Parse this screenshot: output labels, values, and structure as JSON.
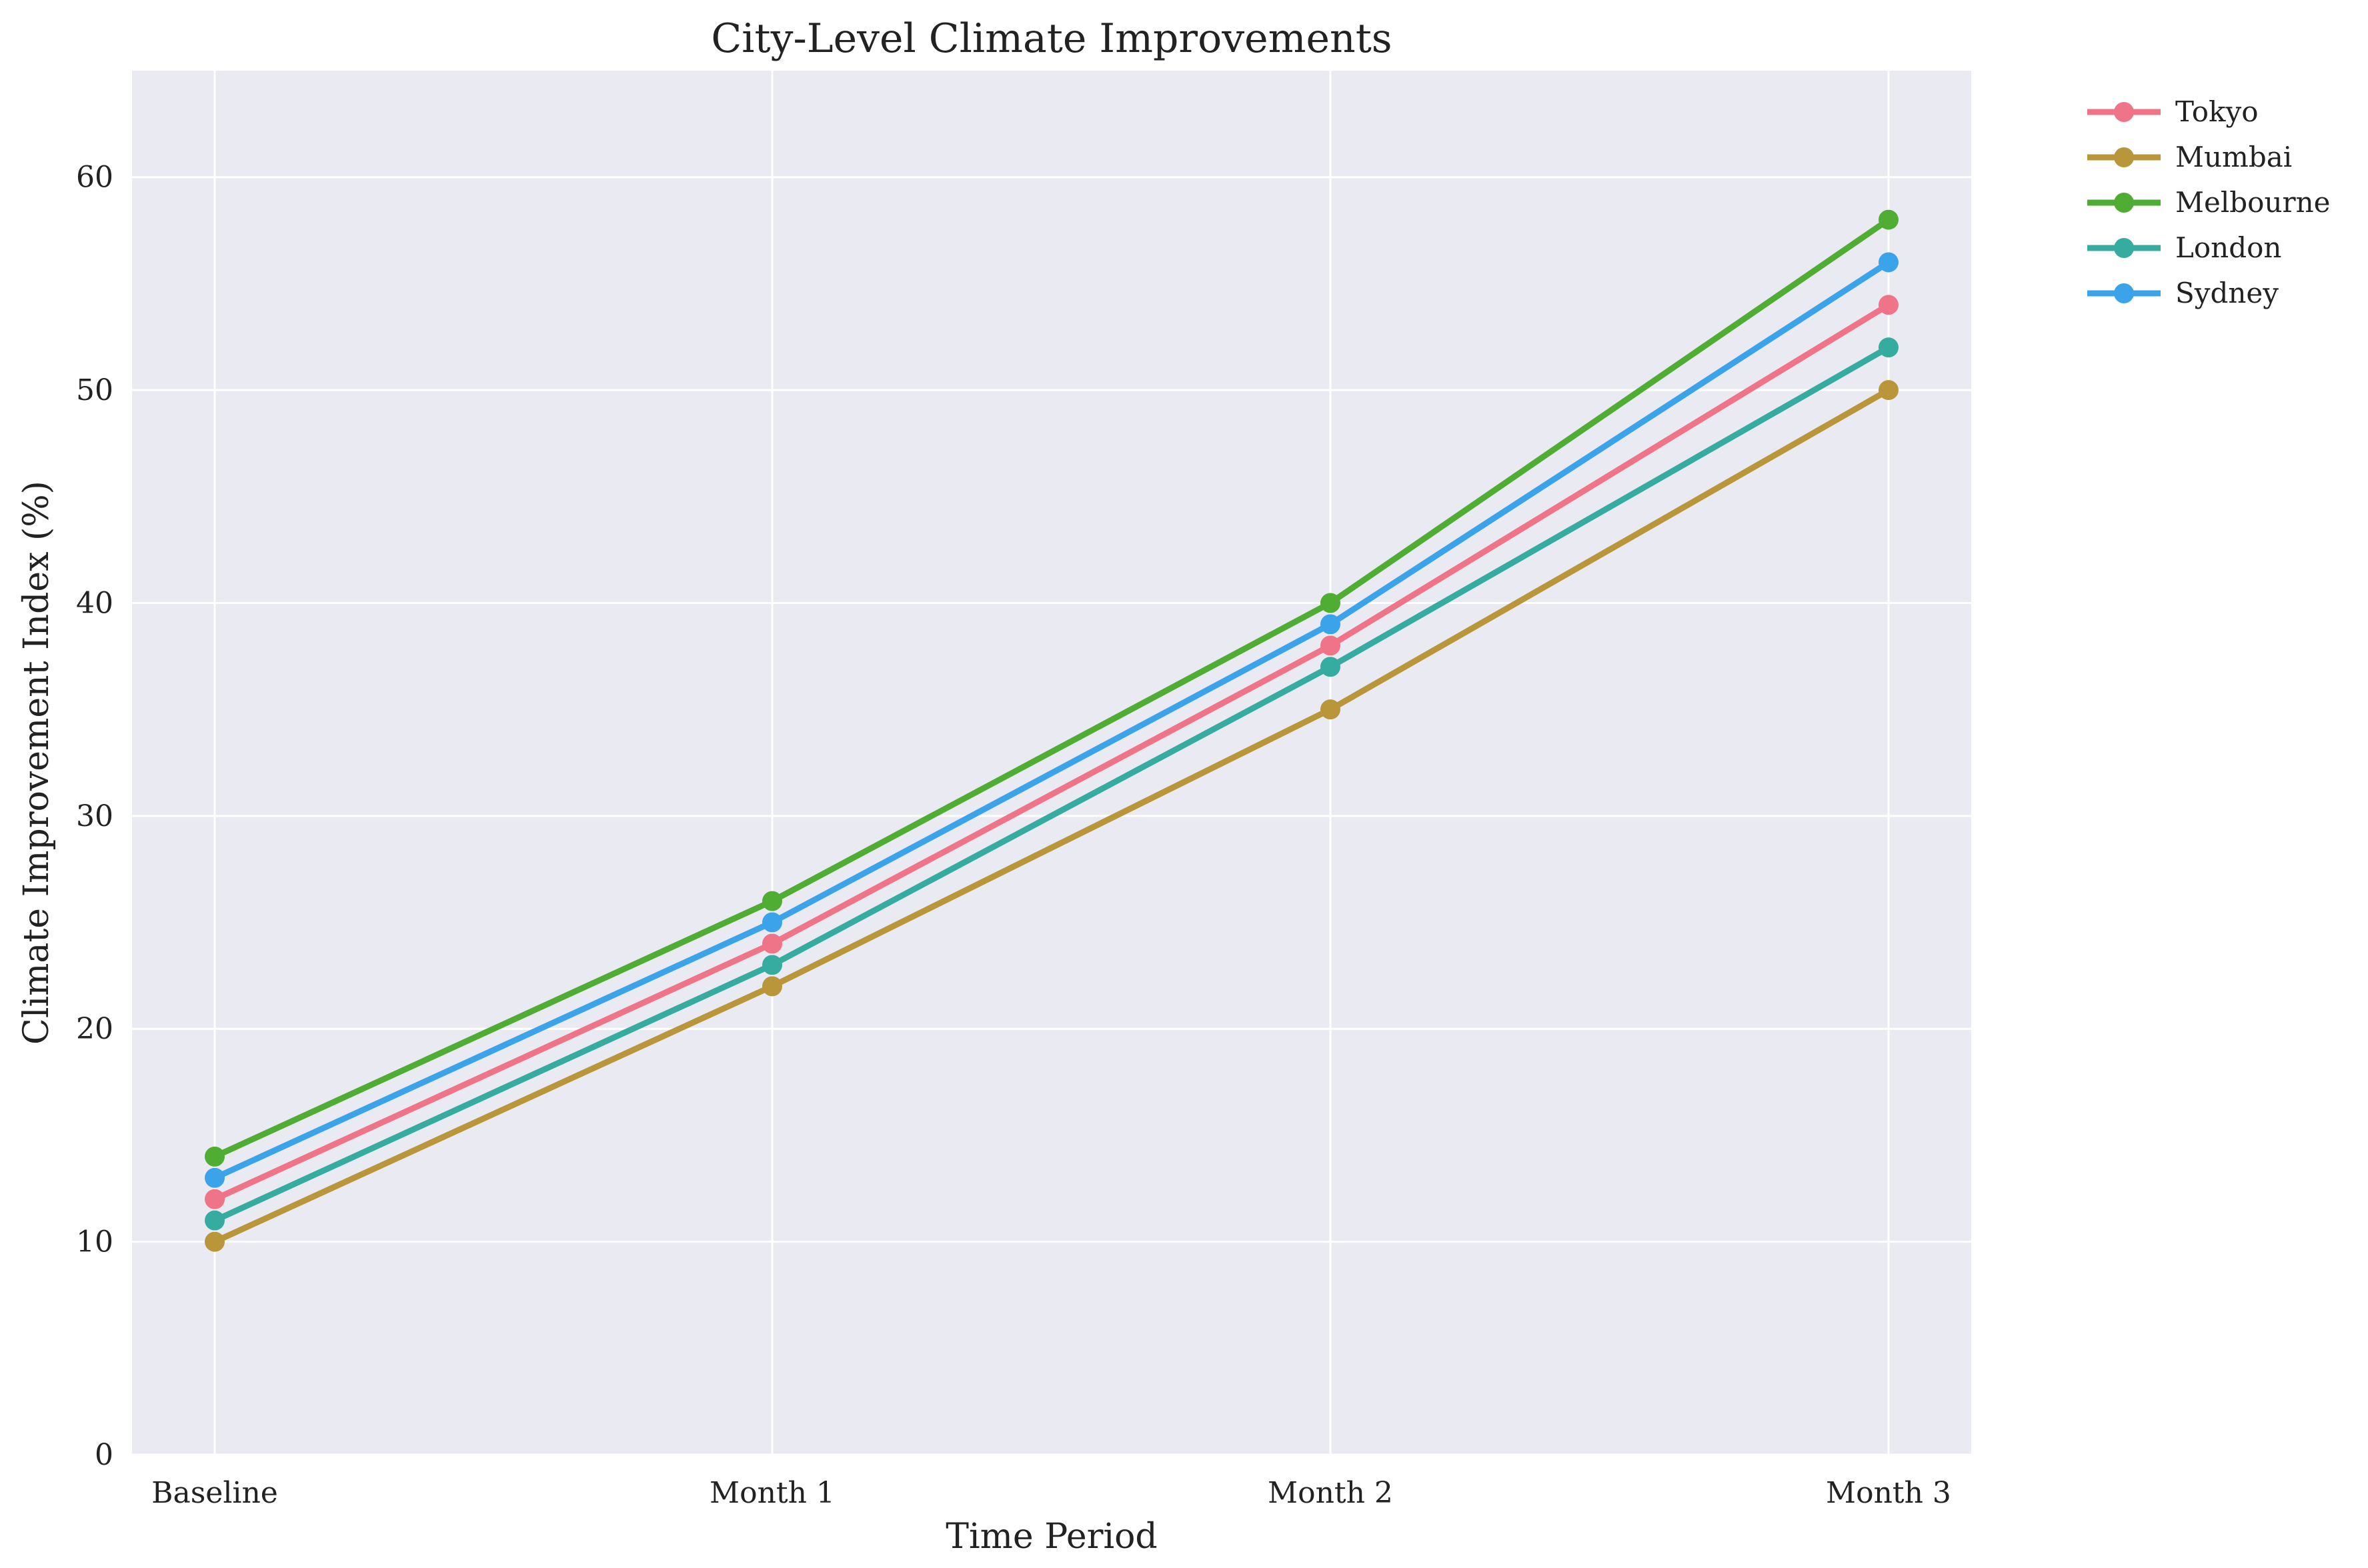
{
  "chart_data": {
    "type": "line",
    "title": "City-Level Climate Improvements",
    "xlabel": "Time Period",
    "ylabel": "Climate Improvement Index (%)",
    "categories": [
      "Baseline",
      "Month 1",
      "Month 2",
      "Month 3"
    ],
    "ylim": [
      0,
      65
    ],
    "yticks": [
      0,
      10,
      20,
      30,
      40,
      50,
      60
    ],
    "grid": true,
    "legend_position": "outside-top-right",
    "background_color": "#eaeaf2",
    "grid_color": "#ffffff",
    "series": [
      {
        "name": "Tokyo",
        "color": "#f07487",
        "values": [
          12,
          24,
          38,
          54
        ]
      },
      {
        "name": "Mumbai",
        "color": "#b9963a",
        "values": [
          10,
          22,
          35,
          50
        ]
      },
      {
        "name": "Melbourne",
        "color": "#4fad33",
        "values": [
          14,
          26,
          40,
          58
        ]
      },
      {
        "name": "London",
        "color": "#36aba0",
        "values": [
          11,
          23,
          37,
          52
        ]
      },
      {
        "name": "Sydney",
        "color": "#3ba3e9",
        "values": [
          13,
          25,
          39,
          56
        ]
      }
    ]
  }
}
